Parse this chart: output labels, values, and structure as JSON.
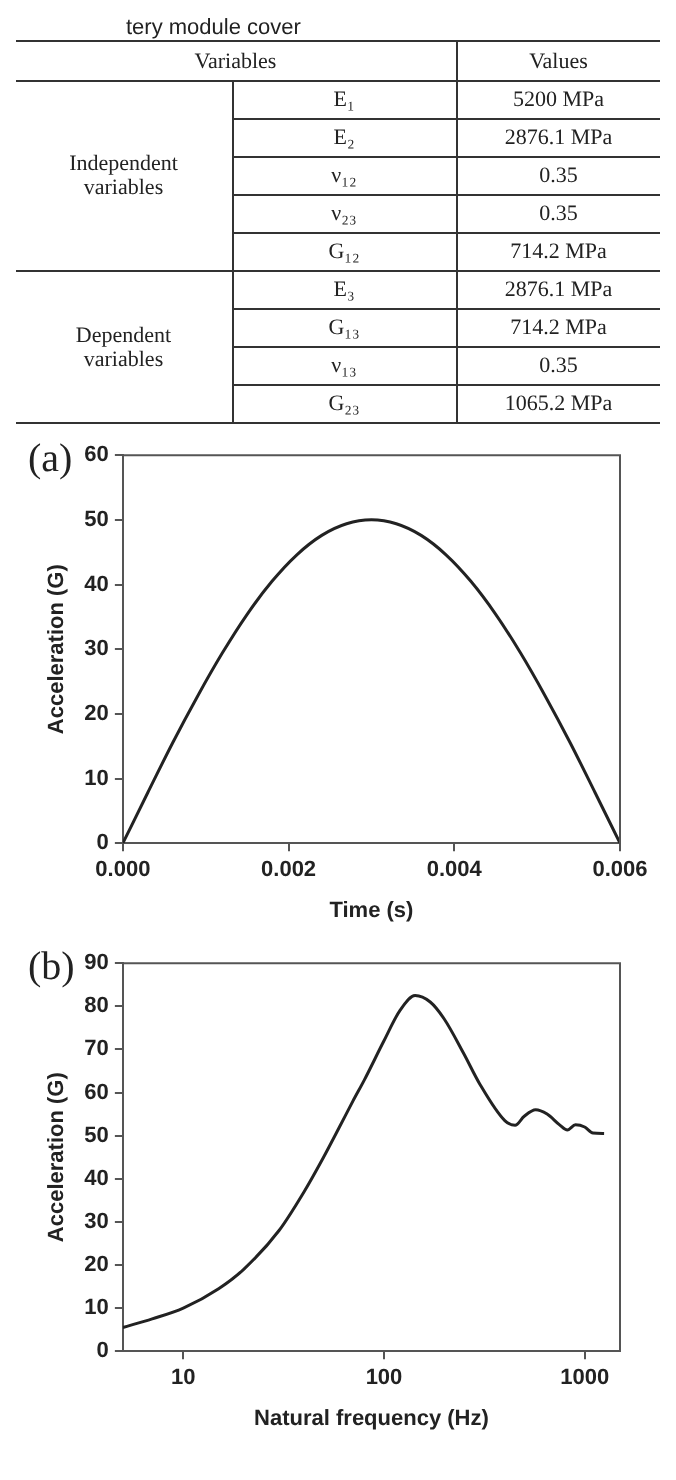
{
  "chart_data": [
    {
      "type": "other",
      "annotations": [
        "tery module cover",
        "Variables",
        "Values",
        "Independent variables",
        "E₁",
        "5200 MPa",
        "E₂",
        "2876.1 MPa",
        "ν₁₂",
        "0.35",
        "ν₂₃",
        "0.35",
        "G₁₂",
        "714.2 MPa",
        "Dependent variables",
        "E₃",
        "2876.1 MPa",
        "G₁₃",
        "714.2 MPa",
        "ν₁₃",
        "0.35",
        "G₂₃",
        "1065.2 MPa"
      ]
    },
    {
      "type": "line",
      "annotations": [
        "(a)"
      ],
      "xlabel": "Time (s)",
      "ylabel": "Acceleration (G)",
      "xlim": [
        0,
        0.006
      ],
      "ylim": [
        0,
        60
      ],
      "xticks": [
        {
          "value": 0,
          "label": "0.000"
        },
        {
          "value": 0.002,
          "label": "0.002"
        },
        {
          "value": 0.004,
          "label": "0.004"
        },
        {
          "value": 0.006,
          "label": "0.006"
        }
      ],
      "yticks": [
        0,
        10,
        20,
        30,
        40,
        50,
        60
      ],
      "grid": false,
      "legend": false,
      "marker": "none",
      "line_style": "solid",
      "series": [
        {
          "color": "#222222",
          "x": [
            0,
            0.0003,
            0.0006,
            0.0009,
            0.0012,
            0.0015,
            0.0018,
            0.0021,
            0.0024,
            0.0027,
            0.003,
            0.0033,
            0.0036,
            0.0039,
            0.0042,
            0.0045,
            0.0048,
            0.0051,
            0.0054,
            0.0057,
            0.006
          ],
          "values": [
            0,
            7.8,
            15.5,
            22.7,
            29.4,
            35.4,
            40.5,
            44.6,
            47.6,
            49.4,
            50,
            49.4,
            47.6,
            44.6,
            40.5,
            35.4,
            29.4,
            22.7,
            15.5,
            7.8,
            0
          ]
        }
      ]
    },
    {
      "type": "line",
      "annotations": [
        "(b)"
      ],
      "xlabel": "Natural frequency (Hz)",
      "ylabel": "Acceleration (G)",
      "log": "x",
      "xlim": [
        5,
        1500
      ],
      "ylim": [
        0,
        90
      ],
      "xticks": [
        10,
        100,
        1000
      ],
      "yticks": [
        0,
        10,
        20,
        30,
        40,
        50,
        60,
        70,
        80,
        90
      ],
      "grid": false,
      "legend": false,
      "marker": "none",
      "line_style": "solid",
      "series": [
        {
          "color": "#222222",
          "x": [
            5,
            7,
            10,
            15,
            20,
            30,
            40,
            50,
            60,
            70,
            80,
            100,
            120,
            143,
            170,
            200,
            250,
            300,
            400,
            450,
            500,
            570,
            650,
            750,
            820,
            900,
            1000,
            1100,
            1250
          ],
          "values": [
            5.5,
            7.5,
            10,
            14.5,
            19,
            28,
            37,
            45,
            52,
            58,
            63,
            72,
            79,
            82.5,
            81,
            77,
            69,
            62,
            53.5,
            52.4,
            54.5,
            56,
            55,
            52.5,
            51.3,
            52.5,
            52,
            50.6,
            50.5
          ]
        }
      ]
    }
  ]
}
